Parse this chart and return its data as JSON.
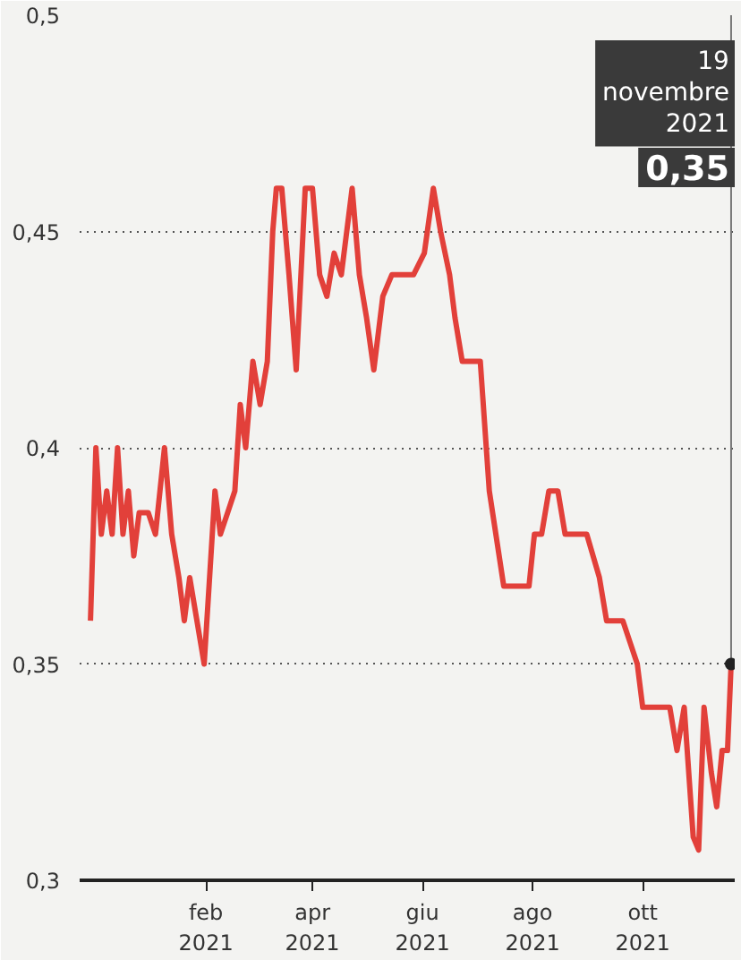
{
  "chart_data": {
    "type": "line",
    "x": [
      "2020-11-29",
      "2020-12-02",
      "2020-12-05",
      "2020-12-08",
      "2020-12-11",
      "2020-12-14",
      "2020-12-17",
      "2020-12-20",
      "2020-12-23",
      "2020-12-26",
      "2020-12-31",
      "2021-01-04",
      "2021-01-09",
      "2021-01-13",
      "2021-01-17",
      "2021-01-20",
      "2021-01-23",
      "2021-01-27",
      "2021-01-31",
      "2021-02-03",
      "2021-02-06",
      "2021-02-09",
      "2021-02-13",
      "2021-02-17",
      "2021-02-20",
      "2021-02-23",
      "2021-02-27",
      "2021-03-03",
      "2021-03-07",
      "2021-03-10",
      "2021-03-12",
      "2021-03-15",
      "2021-03-19",
      "2021-03-23",
      "2021-03-28",
      "2021-04-01",
      "2021-04-05",
      "2021-04-09",
      "2021-04-13",
      "2021-04-17",
      "2021-04-23",
      "2021-04-27",
      "2021-05-01",
      "2021-05-05",
      "2021-05-10",
      "2021-05-15",
      "2021-05-27",
      "2021-06-02",
      "2021-06-07",
      "2021-06-11",
      "2021-06-16",
      "2021-06-19",
      "2021-06-23",
      "2021-07-03",
      "2021-07-08",
      "2021-07-16",
      "2021-07-30",
      "2021-08-02",
      "2021-08-06",
      "2021-08-10",
      "2021-08-15",
      "2021-08-19",
      "2021-08-31",
      "2021-09-07",
      "2021-09-11",
      "2021-09-20",
      "2021-09-24",
      "2021-09-28",
      "2021-10-01",
      "2021-10-16",
      "2021-10-20",
      "2021-10-24",
      "2021-10-29",
      "2021-11-01",
      "2021-11-04",
      "2021-11-08",
      "2021-11-11",
      "2021-11-14",
      "2021-11-17",
      "2021-11-19"
    ],
    "series": [
      {
        "color": "#e2403a",
        "values": [
          0.36,
          0.4,
          0.38,
          0.39,
          0.38,
          0.4,
          0.38,
          0.39,
          0.375,
          0.385,
          0.385,
          0.38,
          0.4,
          0.38,
          0.37,
          0.36,
          0.37,
          0.36,
          0.35,
          0.37,
          0.39,
          0.38,
          0.385,
          0.39,
          0.41,
          0.4,
          0.42,
          0.41,
          0.42,
          0.45,
          0.46,
          0.46,
          0.44,
          0.418,
          0.46,
          0.46,
          0.44,
          0.435,
          0.445,
          0.44,
          0.46,
          0.44,
          0.43,
          0.418,
          0.435,
          0.44,
          0.44,
          0.445,
          0.46,
          0.45,
          0.44,
          0.43,
          0.42,
          0.42,
          0.39,
          0.368,
          0.368,
          0.38,
          0.38,
          0.39,
          0.39,
          0.38,
          0.38,
          0.37,
          0.36,
          0.36,
          0.355,
          0.35,
          0.34,
          0.34,
          0.33,
          0.34,
          0.31,
          0.307,
          0.34,
          0.325,
          0.317,
          0.33,
          0.33,
          0.35
        ]
      }
    ],
    "xlim": [
      "2020-11-23",
      "2021-11-21"
    ],
    "xticks": [
      {
        "value": "2021-02-01",
        "label": "feb\n2021"
      },
      {
        "value": "2021-04-01",
        "label": "apr\n2021"
      },
      {
        "value": "2021-06-01",
        "label": "giu\n2021"
      },
      {
        "value": "2021-08-01",
        "label": "ago\n2021"
      },
      {
        "value": "2021-10-01",
        "label": "ott\n2021"
      }
    ],
    "ylim": [
      0.3,
      0.5
    ],
    "yticks": [
      {
        "value": 0.3,
        "label": "0,3"
      },
      {
        "value": 0.35,
        "label": "0,35"
      },
      {
        "value": 0.4,
        "label": "0,4"
      },
      {
        "value": 0.45,
        "label": "0,45"
      },
      {
        "value": 0.5,
        "label": "0,5"
      }
    ],
    "grid": "y",
    "line_style": "solid",
    "annotations": [
      "19\nnovembre\n2021",
      "0,35"
    ]
  }
}
